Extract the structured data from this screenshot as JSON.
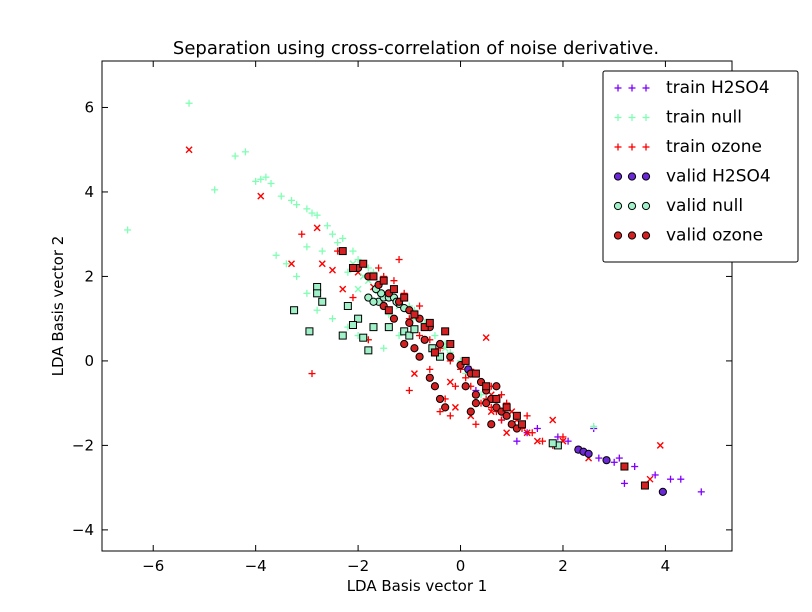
{
  "chart_data": {
    "type": "scatter",
    "title": "Separation using cross-correlation of noise derivative.",
    "xlabel": "LDA Basis vector 1",
    "ylabel": "LDA Basis vector 2",
    "xlim": [
      -7,
      5.3
    ],
    "ylim": [
      -4.5,
      7.1
    ],
    "xticks": [
      -6,
      -4,
      -2,
      0,
      2,
      4
    ],
    "yticks": [
      -4,
      -2,
      0,
      2,
      4,
      6
    ],
    "xtick_labels": [
      "−6",
      "−4",
      "−2",
      "0",
      "2",
      "4"
    ],
    "ytick_labels": [
      "−4",
      "−2",
      "0",
      "2",
      "4",
      "6"
    ],
    "grid": false,
    "legend_position": "top-right",
    "colors": {
      "h2so4": "#8000ff",
      "null": "#80ffb4",
      "ozone": "#ff0000",
      "valid_h2so4": "#6a28d6",
      "valid_null": "#a0f0c8",
      "valid_ozone": "#d42020"
    },
    "series": [
      {
        "name": "train H2SO4",
        "marker": "plus",
        "color": "#8000ff",
        "points": [
          [
            1.3,
            -1.7
          ],
          [
            1.5,
            -1.6
          ],
          [
            1.9,
            -1.8
          ],
          [
            2.1,
            -1.9
          ],
          [
            2.5,
            -2.2
          ],
          [
            2.6,
            -1.6
          ],
          [
            2.7,
            -2.3
          ],
          [
            3.0,
            -2.4
          ],
          [
            3.1,
            -2.3
          ],
          [
            3.2,
            -2.9
          ],
          [
            3.4,
            -2.5
          ],
          [
            3.8,
            -2.7
          ],
          [
            4.1,
            -2.8
          ],
          [
            4.3,
            -2.8
          ],
          [
            4.7,
            -3.1
          ],
          [
            1.1,
            -1.9
          ],
          [
            0.3,
            -0.7
          ],
          [
            0.8,
            -1.4
          ]
        ]
      },
      {
        "name": "train null",
        "marker": "plus",
        "color": "#80ffb4",
        "points": [
          [
            -5.3,
            6.1
          ],
          [
            -6.5,
            3.1
          ],
          [
            -4.8,
            4.05
          ],
          [
            -4.4,
            4.85
          ],
          [
            -4.2,
            4.95
          ],
          [
            -4.0,
            4.25
          ],
          [
            -3.9,
            4.3
          ],
          [
            -3.8,
            4.35
          ],
          [
            -3.7,
            4.2
          ],
          [
            -3.5,
            3.9
          ],
          [
            -3.3,
            3.8
          ],
          [
            -3.2,
            3.7
          ],
          [
            -3.0,
            3.6
          ],
          [
            -2.9,
            3.5
          ],
          [
            -2.8,
            3.45
          ],
          [
            -2.6,
            3.2
          ],
          [
            -2.5,
            3.0
          ],
          [
            -2.4,
            2.8
          ],
          [
            -2.3,
            2.9
          ],
          [
            -2.1,
            2.6
          ],
          [
            -2.0,
            2.4
          ],
          [
            -1.9,
            2.3
          ],
          [
            -1.8,
            2.2
          ],
          [
            -1.7,
            2.1
          ],
          [
            -1.5,
            1.9
          ],
          [
            -1.3,
            1.7
          ],
          [
            -1.1,
            1.5
          ],
          [
            -1.0,
            1.3
          ],
          [
            -0.9,
            1.2
          ],
          [
            -0.7,
            0.9
          ],
          [
            -0.5,
            0.6
          ],
          [
            -0.3,
            0.4
          ],
          [
            -0.2,
            0.2
          ],
          [
            0.0,
            0.0
          ],
          [
            0.1,
            -0.3
          ],
          [
            -3.4,
            2.3
          ],
          [
            -3.2,
            2.0
          ],
          [
            -3.0,
            1.6
          ],
          [
            -2.8,
            1.2
          ],
          [
            -2.5,
            1.0
          ],
          [
            -2.2,
            0.8
          ],
          [
            -2.0,
            0.6
          ],
          [
            -1.8,
            0.5
          ],
          [
            -1.5,
            0.3
          ],
          [
            -1.2,
            0.6
          ],
          [
            -1.6,
            1.6
          ],
          [
            -3.0,
            2.7
          ],
          [
            -2.2,
            2.1
          ],
          [
            2.6,
            -1.55
          ],
          [
            0.4,
            -0.8
          ],
          [
            -1.4,
            1.1
          ],
          [
            -2.7,
            2.6
          ],
          [
            -3.6,
            2.5
          ]
        ]
      },
      {
        "name": "train ozone",
        "marker": "plus",
        "color": "#ff0000",
        "points": [
          [
            -2.9,
            -0.3
          ],
          [
            -1.8,
            0.5
          ],
          [
            -1.5,
            2.0
          ],
          [
            -1.3,
            1.9
          ],
          [
            -1.1,
            1.6
          ],
          [
            -1.0,
            1.0
          ],
          [
            -0.8,
            0.6
          ],
          [
            -0.6,
            0.5
          ],
          [
            -0.4,
            0.3
          ],
          [
            -0.2,
            0.0
          ],
          [
            0.0,
            -0.2
          ],
          [
            0.1,
            -0.4
          ],
          [
            0.2,
            -0.6
          ],
          [
            0.3,
            -0.8
          ],
          [
            0.4,
            -1.0
          ],
          [
            0.5,
            -0.9
          ],
          [
            0.6,
            -1.1
          ],
          [
            0.7,
            -1.2
          ],
          [
            0.8,
            -1.4
          ],
          [
            1.0,
            -1.5
          ],
          [
            1.2,
            -1.6
          ],
          [
            1.4,
            -1.7
          ],
          [
            1.6,
            -1.9
          ],
          [
            1.8,
            -2.0
          ],
          [
            2.0,
            -1.8
          ],
          [
            -0.2,
            -1.3
          ],
          [
            -0.4,
            -1.2
          ],
          [
            -1.0,
            -0.7
          ],
          [
            -0.6,
            -0.2
          ],
          [
            0.2,
            -0.2
          ],
          [
            0.4,
            -0.5
          ],
          [
            0.6,
            -0.6
          ],
          [
            0.9,
            -1.0
          ],
          [
            -0.8,
            1.3
          ],
          [
            -1.6,
            2.2
          ],
          [
            -2.1,
            1.5
          ],
          [
            0.8,
            -0.8
          ],
          [
            1.3,
            -1.3
          ],
          [
            0.3,
            -1.5
          ],
          [
            -0.1,
            -0.6
          ],
          [
            -1.2,
            2.4
          ],
          [
            -2.4,
            2.6
          ],
          [
            -3.1,
            3.0
          ],
          [
            -0.3,
            -0.9
          ]
        ]
      },
      {
        "name": "train ozone (x)",
        "marker": "x",
        "color": "#ff0000",
        "points": [
          [
            -5.3,
            5.0
          ],
          [
            -3.9,
            3.9
          ],
          [
            -2.8,
            3.15
          ],
          [
            -3.3,
            2.3
          ],
          [
            -2.7,
            2.3
          ],
          [
            -2.5,
            2.15
          ],
          [
            -2.0,
            2.1
          ],
          [
            -1.7,
            1.75
          ],
          [
            -1.0,
            0.6
          ],
          [
            -0.7,
            0.8
          ],
          [
            0.5,
            0.55
          ],
          [
            -0.9,
            -0.3
          ],
          [
            -0.2,
            -0.5
          ],
          [
            0.3,
            -0.3
          ],
          [
            0.6,
            -0.8
          ],
          [
            1.0,
            -1.2
          ],
          [
            1.3,
            -1.7
          ],
          [
            1.5,
            -1.9
          ],
          [
            1.8,
            -1.4
          ],
          [
            2.0,
            -1.9
          ],
          [
            2.3,
            -2.1
          ],
          [
            2.5,
            -2.3
          ],
          [
            3.7,
            -2.8
          ],
          [
            3.9,
            -2.0
          ],
          [
            -2.3,
            1.7
          ],
          [
            -1.5,
            1.3
          ],
          [
            -0.5,
            0.2
          ],
          [
            0.2,
            -1.3
          ],
          [
            0.9,
            -1.7
          ],
          [
            1.1,
            -1.4
          ],
          [
            -0.1,
            -1.1
          ],
          [
            0.6,
            -1.2
          ]
        ]
      },
      {
        "name": "train null (x)",
        "marker": "x",
        "color": "#80ffb4",
        "points": [
          [
            -2.3,
            2.6
          ],
          [
            -2.1,
            2.3
          ],
          [
            -1.9,
            2.0
          ],
          [
            -1.6,
            1.8
          ],
          [
            -1.2,
            1.3
          ],
          [
            -0.9,
            1.0
          ],
          [
            -0.6,
            0.8
          ],
          [
            -0.3,
            0.3
          ],
          [
            -1.8,
            1.9
          ],
          [
            -2.0,
            1.7
          ]
        ]
      },
      {
        "name": "valid H2SO4",
        "marker": "circle",
        "color": "#6a28d6",
        "points": [
          [
            2.3,
            -2.1
          ],
          [
            2.4,
            -2.15
          ],
          [
            2.5,
            -2.2
          ],
          [
            2.85,
            -2.35
          ],
          [
            3.95,
            -3.1
          ],
          [
            0.15,
            -0.2
          ]
        ]
      },
      {
        "name": "valid null",
        "marker": "circle",
        "color": "#a0f0c8",
        "points": [
          [
            -1.8,
            1.5
          ],
          [
            -1.6,
            1.4
          ],
          [
            -1.5,
            1.5
          ],
          [
            -1.4,
            1.5
          ],
          [
            -1.3,
            1.5
          ],
          [
            -1.2,
            1.35
          ],
          [
            -1.7,
            1.4
          ],
          [
            -1.55,
            1.6
          ],
          [
            -1.25,
            1.4
          ],
          [
            -1.1,
            1.25
          ],
          [
            -1.65,
            1.7
          ]
        ]
      },
      {
        "name": "valid null (square)",
        "marker": "square",
        "color": "#a0f0c8",
        "points": [
          [
            -2.8,
            1.75
          ],
          [
            -2.8,
            1.6
          ],
          [
            -2.7,
            1.4
          ],
          [
            -3.25,
            1.2
          ],
          [
            -2.95,
            0.7
          ],
          [
            -2.2,
            1.3
          ],
          [
            -2.0,
            1.0
          ],
          [
            -1.9,
            0.55
          ],
          [
            -1.7,
            0.8
          ],
          [
            -2.3,
            0.6
          ],
          [
            -1.4,
            0.8
          ],
          [
            -1.1,
            0.7
          ],
          [
            -1.0,
            0.6
          ],
          [
            -0.9,
            0.75
          ],
          [
            -1.8,
            0.25
          ],
          [
            -0.4,
            0.1
          ],
          [
            1.9,
            -2.0
          ],
          [
            1.8,
            -1.95
          ],
          [
            -0.55,
            0.3
          ],
          [
            -2.1,
            0.85
          ]
        ]
      },
      {
        "name": "valid ozone",
        "marker": "circle",
        "color": "#d42020",
        "points": [
          [
            -2.0,
            2.2
          ],
          [
            -1.8,
            2.0
          ],
          [
            -1.6,
            1.8
          ],
          [
            -1.4,
            1.6
          ],
          [
            -1.2,
            1.4
          ],
          [
            -1.0,
            1.2
          ],
          [
            -0.8,
            1.0
          ],
          [
            -0.6,
            0.8
          ],
          [
            -0.4,
            0.4
          ],
          [
            -0.2,
            0.1
          ],
          [
            0.0,
            -0.1
          ],
          [
            0.2,
            -0.3
          ],
          [
            0.4,
            -0.5
          ],
          [
            0.5,
            -0.7
          ],
          [
            0.6,
            -0.9
          ],
          [
            0.7,
            -1.1
          ],
          [
            0.8,
            -1.2
          ],
          [
            0.9,
            -1.3
          ],
          [
            1.0,
            -1.5
          ],
          [
            1.1,
            -1.6
          ],
          [
            -0.5,
            -0.6
          ],
          [
            -0.4,
            -0.9
          ],
          [
            -0.3,
            -1.1
          ],
          [
            -0.6,
            -0.4
          ],
          [
            -1.1,
            0.4
          ],
          [
            -1.0,
            0.9
          ],
          [
            -0.7,
            0.5
          ],
          [
            0.1,
            -0.6
          ],
          [
            0.3,
            -0.8
          ],
          [
            0.5,
            -1.0
          ],
          [
            0.6,
            -1.5
          ],
          [
            -0.8,
            0.1
          ],
          [
            -1.3,
            1.0
          ],
          [
            -1.5,
            1.3
          ],
          [
            -0.9,
            0.3
          ],
          [
            0.3,
            -1.0
          ],
          [
            0.7,
            -0.6
          ],
          [
            0.2,
            -1.2
          ]
        ]
      },
      {
        "name": "valid ozone (square)",
        "marker": "square",
        "color": "#d42020",
        "points": [
          [
            -2.3,
            2.6
          ],
          [
            -2.1,
            2.2
          ],
          [
            -1.9,
            2.3
          ],
          [
            -1.7,
            2.0
          ],
          [
            -1.5,
            1.9
          ],
          [
            -1.3,
            1.7
          ],
          [
            -1.1,
            1.5
          ],
          [
            -0.9,
            1.1
          ],
          [
            -0.7,
            0.8
          ],
          [
            -0.3,
            0.7
          ],
          [
            -0.6,
            0.9
          ],
          [
            -0.2,
            0.4
          ],
          [
            0.1,
            0.0
          ],
          [
            0.3,
            -0.3
          ],
          [
            0.5,
            -0.6
          ],
          [
            0.7,
            -0.9
          ],
          [
            0.9,
            -1.1
          ],
          [
            1.1,
            -1.3
          ],
          [
            1.2,
            -1.5
          ],
          [
            3.2,
            -2.5
          ],
          [
            3.6,
            -2.95
          ],
          [
            -1.4,
            1.2
          ],
          [
            -0.5,
            0.2
          ]
        ]
      }
    ],
    "legend": [
      {
        "label": "train H2SO4",
        "marker": "plus",
        "color": "#8000ff"
      },
      {
        "label": "train null",
        "marker": "plus",
        "color": "#80ffb4"
      },
      {
        "label": "train ozone",
        "marker": "plus",
        "color": "#ff0000"
      },
      {
        "label": "valid H2SO4",
        "marker": "circle",
        "color": "#6a28d6"
      },
      {
        "label": "valid null",
        "marker": "circle",
        "color": "#a0f0c8"
      },
      {
        "label": "valid ozone",
        "marker": "circle",
        "color": "#d42020"
      }
    ]
  }
}
